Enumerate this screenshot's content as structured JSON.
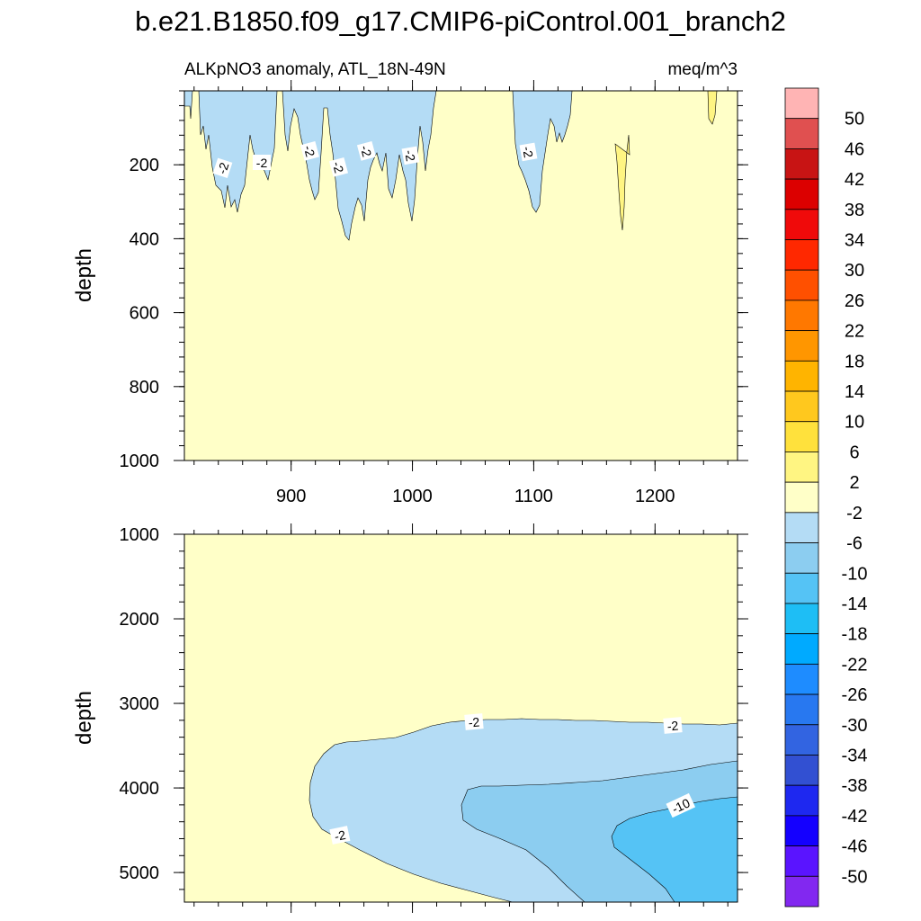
{
  "chart_data": {
    "type": "contour",
    "title": "b.e21.B1850.f09_g17.CMIP6-piControl.001_branch2",
    "subtitle_left": "ALKpNO3 anomaly, ATL_18N-49N",
    "subtitle_right": "meq/m^3",
    "xlabel": "",
    "x_ticks": [
      900,
      1000,
      1100,
      1200
    ],
    "x_tick_labels": [
      "900",
      "1000",
      "1100",
      "1200"
    ],
    "xlim": [
      812,
      1268
    ],
    "panels": [
      {
        "name": "upper",
        "ylabel": "depth",
        "ylim": [
          0,
          1000
        ],
        "y_ticks": [
          200,
          400,
          600,
          800,
          1000
        ],
        "y_tick_labels": [
          "200",
          "400",
          "600",
          "800",
          "1000"
        ],
        "contour_labels": [
          "-2",
          "-2",
          "-2",
          "-2",
          "-2",
          "-2",
          "-2"
        ]
      },
      {
        "name": "lower",
        "ylabel": "depth",
        "ylim": [
          1000,
          5350
        ],
        "y_ticks": [
          1000,
          2000,
          3000,
          4000,
          5000
        ],
        "y_tick_labels": [
          "1000",
          "2000",
          "3000",
          "4000",
          "5000"
        ],
        "contour_labels": [
          "-2",
          "-2",
          "-2",
          "-10"
        ]
      }
    ],
    "colorbar": {
      "levels": [
        50,
        46,
        42,
        38,
        34,
        30,
        26,
        22,
        18,
        14,
        10,
        6,
        2,
        -2,
        -6,
        -10,
        -14,
        -18,
        -22,
        -26,
        -30,
        -34,
        -38,
        -42,
        -46,
        -50
      ],
      "level_labels": [
        "50",
        "46",
        "42",
        "38",
        "34",
        "30",
        "26",
        "22",
        "18",
        "14",
        "10",
        "6",
        "2",
        "-2",
        "-6",
        "-10",
        "-14",
        "-18",
        "-22",
        "-26",
        "-30",
        "-34",
        "-38",
        "-42",
        "-46",
        "-50"
      ],
      "colors": [
        "#ffb4b4",
        "#e05050",
        "#c81414",
        "#dc0000",
        "#f00a0a",
        "#ff2800",
        "#ff5000",
        "#ff7800",
        "#ff9600",
        "#ffb400",
        "#ffc81e",
        "#ffe13c",
        "#fff582",
        "#ffffc8",
        "#b4dcf5",
        "#8ccdf0",
        "#55c3f5",
        "#1ebef5",
        "#00aaff",
        "#1e8cff",
        "#2878f0",
        "#3264e1",
        "#3250d2",
        "#1e28f0",
        "#1400ff",
        "#5a14ff",
        "#8228f0"
      ]
    }
  }
}
